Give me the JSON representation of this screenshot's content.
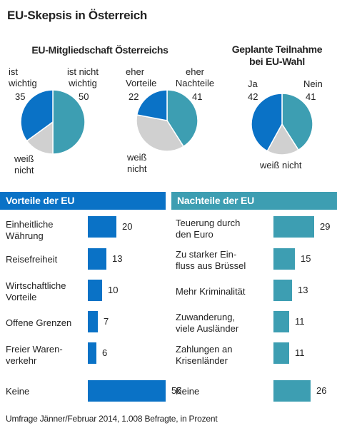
{
  "title": "EU-Skepsis in Österreich",
  "footnote": "Umfrage Jänner/Februar 2014, 1.008 Befragte, in Prozent",
  "colors": {
    "blue": "#0a72c6",
    "teal": "#3d9eb2",
    "gray": "#d0d0d0"
  },
  "chart_data": [
    {
      "type": "pie",
      "group_title": "EU-Mitgliedschaft Österreichs",
      "slices": [
        {
          "label": "ist wichtig",
          "value": 35,
          "color": "#0a72c6"
        },
        {
          "label": "ist nicht wichtig",
          "value": 50,
          "color": "#3d9eb2"
        },
        {
          "label": "weiß nicht",
          "value": 15,
          "color": "#d0d0d0"
        }
      ]
    },
    {
      "type": "pie",
      "slices": [
        {
          "label": "eher Vorteile",
          "value": 22,
          "color": "#0a72c6"
        },
        {
          "label": "eher Nachteile",
          "value": 41,
          "color": "#3d9eb2"
        },
        {
          "label": "weiß nicht",
          "value": 37,
          "color": "#d0d0d0"
        }
      ]
    },
    {
      "type": "pie",
      "title": "Geplante Teilnahme bei EU-Wahl",
      "slices": [
        {
          "label": "Ja",
          "value": 42,
          "color": "#0a72c6"
        },
        {
          "label": "Nein",
          "value": 41,
          "color": "#3d9eb2"
        },
        {
          "label": "weiß nicht",
          "value": 17,
          "color": "#d0d0d0"
        }
      ]
    },
    {
      "type": "bar",
      "title": "Vorteile der EU",
      "color": "#0a72c6",
      "categories": [
        "Einheitliche Währung",
        "Reisefreiheit",
        "Wirtschaftliche Vorteile",
        "Offene Grenzen",
        "Freier Warenverkehr",
        "Keine"
      ],
      "values": [
        20,
        13,
        10,
        7,
        6,
        55
      ]
    },
    {
      "type": "bar",
      "title": "Nachteile der EU",
      "color": "#3d9eb2",
      "categories": [
        "Teuerung durch den Euro",
        "Zu starker Einfluss aus Brüssel",
        "Mehr Kriminalität",
        "Zuwanderung, viele Ausländer",
        "Zahlungen an Krisenländer",
        "Keine"
      ],
      "values": [
        29,
        15,
        13,
        11,
        11,
        26
      ]
    }
  ]
}
